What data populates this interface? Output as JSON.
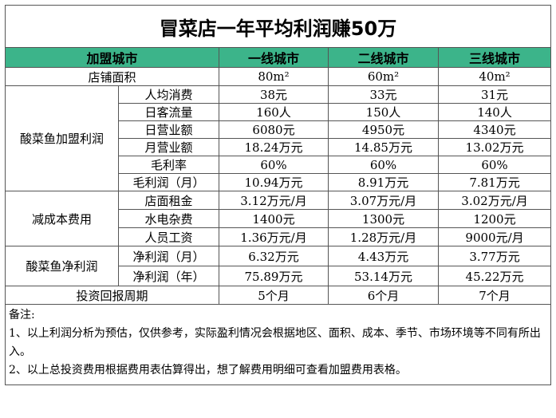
{
  "title": "冒菜店一年平均利润赚50万",
  "header": {
    "col0": "加盟城市",
    "cities": [
      "一线城市",
      "二线城市",
      "三线城市"
    ]
  },
  "rows": {
    "area": {
      "label": "店铺面积",
      "values": [
        "80m²",
        "60m²",
        "40m²"
      ]
    },
    "group1": {
      "label": "酸菜鱼加盟利润",
      "items": [
        {
          "label": "人均消费",
          "values": [
            "38元",
            "33元",
            "31元"
          ]
        },
        {
          "label": "日客流量",
          "values": [
            "160人",
            "150人",
            "140人"
          ]
        },
        {
          "label": "日营业额",
          "values": [
            "6080元",
            "4950元",
            "4340元"
          ]
        },
        {
          "label": "月营业额",
          "values": [
            "18.24万元",
            "14.85万元",
            "13.02万元"
          ]
        },
        {
          "label": "毛利率",
          "values": [
            "60%",
            "60%",
            "60%"
          ]
        },
        {
          "label": "毛利润（月）",
          "values": [
            "10.94万元",
            "8.91万元",
            "7.81万元"
          ]
        }
      ]
    },
    "group2": {
      "label": "减成本费用",
      "items": [
        {
          "label": "店面租金",
          "values": [
            "3.12万元/月",
            "3.07万元/月",
            "3.02万元/月"
          ]
        },
        {
          "label": "水电杂费",
          "values": [
            "1400元",
            "1300元",
            "1200元"
          ]
        },
        {
          "label": "人员工资",
          "values": [
            "1.36万元/月",
            "1.28万元/月",
            "9000元/月"
          ]
        }
      ]
    },
    "group3": {
      "label": "酸菜鱼净利润",
      "items": [
        {
          "label": "净利润（月）",
          "values": [
            "6.32万元",
            "4.43万元",
            "3.77万元"
          ]
        },
        {
          "label": "净利润（年）",
          "values": [
            "75.89万元",
            "53.14万元",
            "45.22万元"
          ]
        }
      ]
    },
    "payback": {
      "label": "投资回报周期",
      "values": [
        "5个月",
        "6个月",
        "7个月"
      ]
    }
  },
  "notes": {
    "heading": "备注:",
    "line1": "1、以上利润分析为预估，仅供参考，实际盈利情况会根据地区、面积、成本、季节、市场环境等不同有所出入。",
    "line2": "2、以上总投资费用根据费用表估算得出，想了解费用明细可查看加盟费用表格。"
  },
  "colors": {
    "header_bg": "#3cb48a",
    "border": "#555555"
  }
}
